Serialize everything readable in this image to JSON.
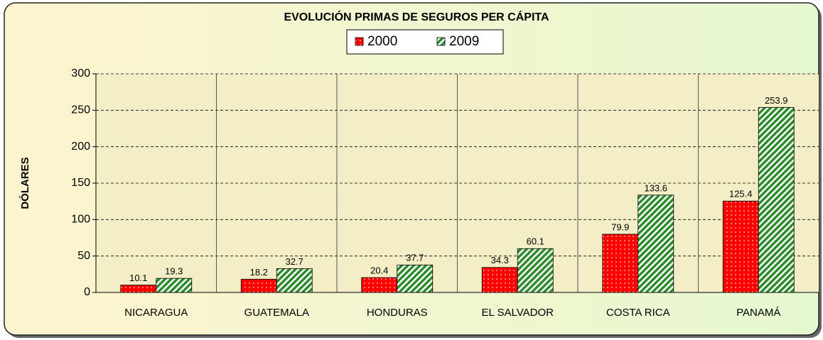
{
  "chart_data": {
    "type": "bar",
    "title": "EVOLUCIÓN PRIMAS DE SEGUROS PER CÁPITA",
    "y_label": "DÓLARES",
    "categories": [
      "NICARAGUA",
      "GUATEMALA",
      "HONDURAS",
      "EL SALVADOR",
      "COSTA RICA",
      "PANAMÁ"
    ],
    "series": [
      {
        "name": "2000",
        "color": "#ff0000",
        "values": [
          10.1,
          18.2,
          20.4,
          34.3,
          79.9,
          125.4
        ]
      },
      {
        "name": "2009",
        "color": "#2e8b2e",
        "values": [
          19.3,
          32.7,
          37.7,
          60.1,
          133.6,
          253.9
        ]
      }
    ],
    "ylim": [
      0,
      300
    ],
    "yticks": [
      0,
      50,
      100,
      150,
      200,
      250,
      300
    ],
    "grid": true
  }
}
